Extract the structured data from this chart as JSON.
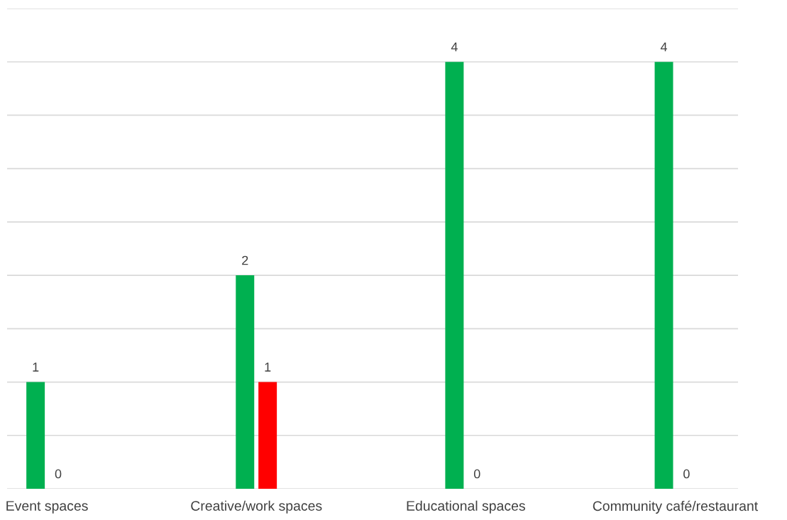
{
  "chart_data": {
    "type": "bar",
    "categories": [
      "Event spaces",
      "Creative/work spaces",
      "Educational spaces",
      "Community café/restaurant"
    ],
    "series": [
      {
        "color": "#00b050",
        "values": [
          1,
          2,
          4,
          4
        ]
      },
      {
        "color": "#ff0000",
        "values": [
          0,
          1,
          0,
          0
        ]
      }
    ],
    "ylim": [
      0,
      4.5
    ],
    "yticks": [
      {
        "value": 0,
        "label": null
      },
      {
        "value": 0.5,
        "label": null
      },
      {
        "value": 1,
        "label": null
      },
      {
        "value": 1.5,
        "label": null
      },
      {
        "value": 2,
        "label": null
      },
      {
        "value": 2.5,
        "label": null
      },
      {
        "value": 3,
        "label": null
      },
      {
        "value": 3.5,
        "label": null
      },
      {
        "value": 4,
        "label": null
      },
      {
        "value": 4.5,
        "label": null
      }
    ],
    "tick_labels": "x",
    "grid": "y",
    "data_labels": true
  }
}
